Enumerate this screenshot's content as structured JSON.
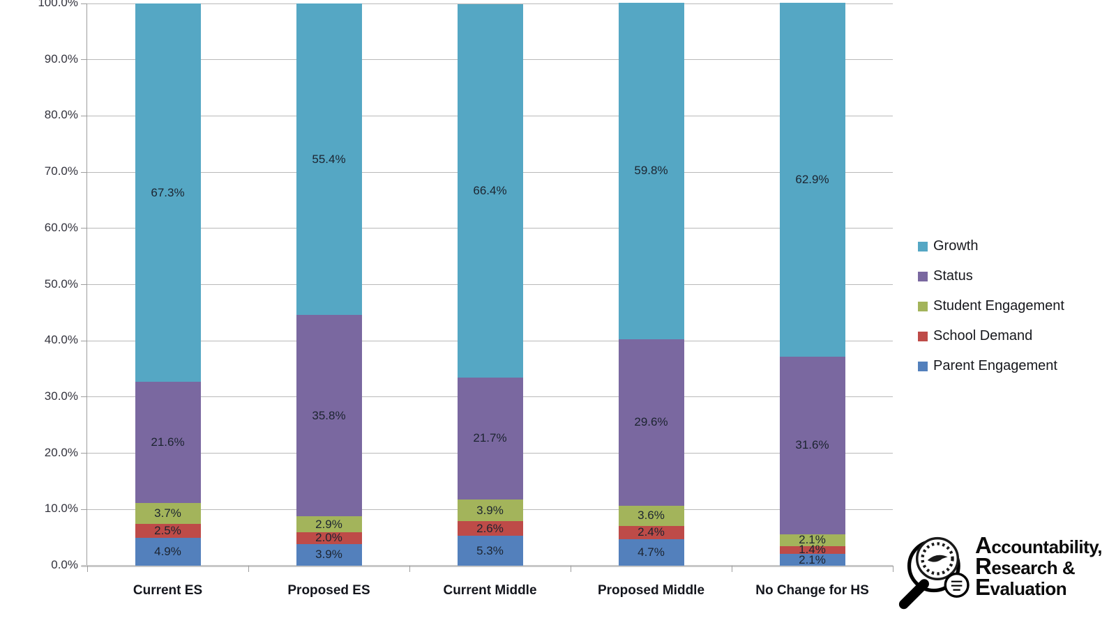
{
  "chart_data": {
    "type": "bar",
    "subtype": "stacked-100",
    "title": "",
    "categories": [
      "Current ES",
      "Proposed ES",
      "Current Middle",
      "Proposed Middle",
      "No Change for HS"
    ],
    "series": [
      {
        "name": "Parent Engagement",
        "color": "#5380bc",
        "values": [
          4.9,
          3.9,
          5.3,
          4.7,
          2.1
        ]
      },
      {
        "name": "School Demand",
        "color": "#be4b48",
        "values": [
          2.5,
          2.0,
          2.6,
          2.4,
          1.4
        ]
      },
      {
        "name": "Student Engagement",
        "color": "#a3b45b",
        "values": [
          3.7,
          2.9,
          3.9,
          3.6,
          2.1
        ]
      },
      {
        "name": "Status",
        "color": "#7a68a0",
        "values": [
          21.6,
          35.8,
          21.7,
          29.6,
          31.6
        ]
      },
      {
        "name": "Growth",
        "color": "#55a7c4",
        "values": [
          67.3,
          55.4,
          66.4,
          59.8,
          62.9
        ]
      }
    ],
    "data_label_suffix": "%",
    "xlabel": "",
    "ylabel": "",
    "ylim": [
      0,
      100
    ],
    "y_tick_step": 10,
    "y_tick_labels": [
      "0.0%",
      "10.0%",
      "20.0%",
      "30.0%",
      "40.0%",
      "50.0%",
      "60.0%",
      "70.0%",
      "80.0%",
      "90.0%",
      "100.0%"
    ],
    "grid": "horizontal",
    "legend_position": "right",
    "legend_order": [
      "Growth",
      "Status",
      "Student Engagement",
      "School Demand",
      "Parent Engagement"
    ]
  },
  "logo": {
    "icon": "magnifier-seal-icon",
    "lines": [
      "Accountability,",
      "Research &",
      "Evaluation"
    ]
  },
  "ui_colors": {
    "background": "#ffffff",
    "gridline": "#b9b9b9",
    "axis": "#9d9d9d",
    "baseline": "#c7c7c7",
    "data_label": "#1c2430",
    "category_label": "#14161d"
  }
}
